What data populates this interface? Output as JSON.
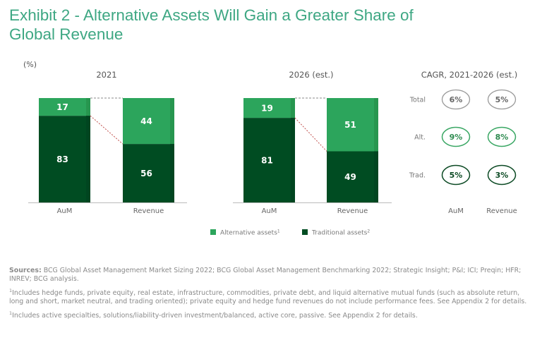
{
  "title": "Exhibit 2 - Alternative Assets Will Gain a Greater Share of Global Revenue",
  "colors": {
    "title": "#3ea783",
    "alternative": "#2ca55c",
    "alternative_edge": "#27964f",
    "traditional": "#004c22",
    "traditional_edge": "#004520",
    "connector": "#c0504d",
    "axis": "#bbbbbb",
    "total_ring": "#9a9a9a",
    "alt_ring": "#3aa764",
    "trad_ring": "#0c4a24"
  },
  "chart_data": [
    {
      "type": "bar",
      "stacked": true,
      "title": "2021",
      "unit_label": "(%)",
      "categories": [
        "AuM",
        "Revenue"
      ],
      "series": [
        {
          "name": "Traditional assets",
          "values": [
            83,
            56
          ]
        },
        {
          "name": "Alternative assets",
          "values": [
            17,
            44
          ]
        }
      ],
      "ylim": [
        0,
        100
      ],
      "grid": false,
      "legend": "bottom"
    },
    {
      "type": "bar",
      "stacked": true,
      "title": "2026 (est.)",
      "categories": [
        "AuM",
        "Revenue"
      ],
      "series": [
        {
          "name": "Traditional assets",
          "values": [
            81,
            49
          ]
        },
        {
          "name": "Alternative assets",
          "values": [
            19,
            51
          ]
        }
      ],
      "ylim": [
        0,
        100
      ],
      "grid": false,
      "legend": "bottom"
    },
    {
      "type": "table",
      "title": "CAGR, 2021-2026 (est.)",
      "columns": [
        "AuM",
        "Revenue"
      ],
      "rows": [
        {
          "label": "Total",
          "values": [
            "6%",
            "5%"
          ]
        },
        {
          "label": "Alt.",
          "values": [
            "9%",
            "8%"
          ]
        },
        {
          "label": "Trad.",
          "values": [
            "5%",
            "3%"
          ]
        }
      ]
    }
  ],
  "legend": [
    {
      "label": "Alternative assets",
      "sup": "1",
      "series": "alternative"
    },
    {
      "label": "Traditional assets",
      "sup": "2",
      "series": "traditional"
    }
  ],
  "notes": {
    "sources_label": "Sources:",
    "sources_text": " BCG Global Asset Management Market Sizing 2022; BCG Global Asset Management Benchmarking 2022; Strategic Insight; P&I; ICI; Preqin; HFR; INREV; BCG analysis.",
    "footnote1_mark": "1",
    "footnote1": "Includes hedge funds, private equity, real estate, infrastructure, commodities, private debt, and liquid alternative mutual funds (such as absolute return, long and short, market neutral, and trading oriented); private equity and hedge fund revenues do not include performance fees. See Appendix 2 for details.",
    "footnote2_mark": "1",
    "footnote2": "Includes active specialties, solutions/liability-driven investment/balanced, active core, passive. See Appendix 2 for details."
  }
}
